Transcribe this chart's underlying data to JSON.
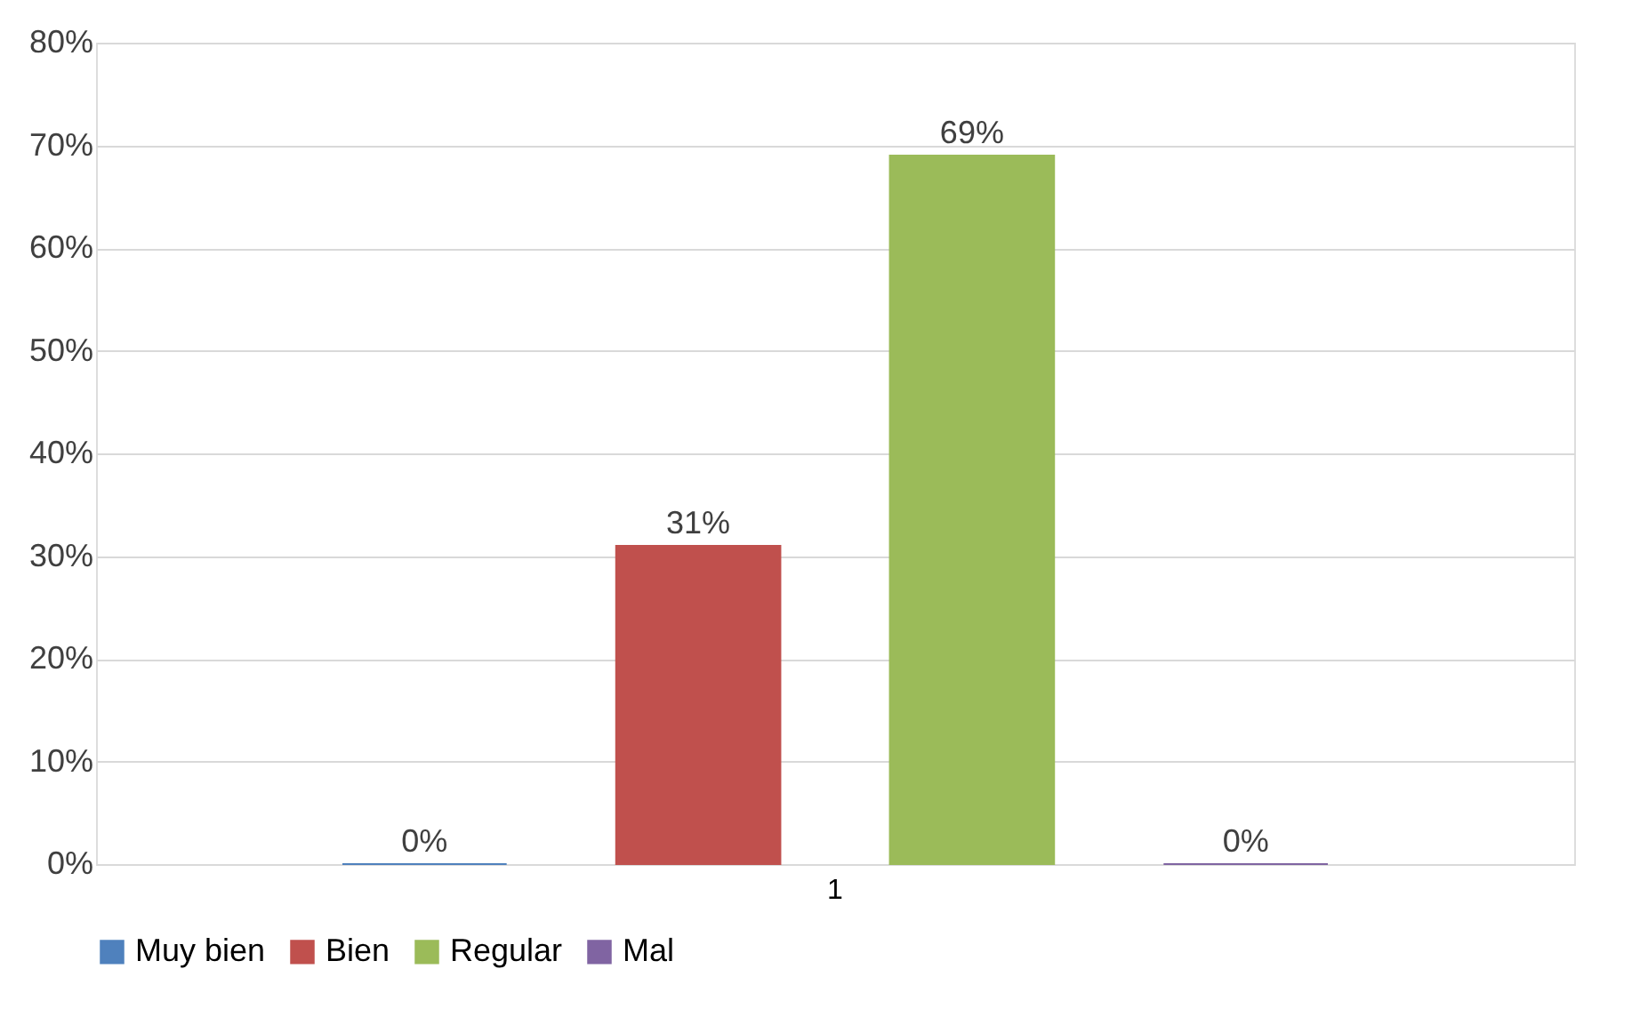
{
  "chart_data": {
    "type": "bar",
    "categories": [
      "1"
    ],
    "series": [
      {
        "name": "Muy bien",
        "color": "#4f81bd",
        "values": [
          0
        ],
        "value_labels": [
          "0%"
        ]
      },
      {
        "name": "Bien",
        "color": "#c0504d",
        "values": [
          31
        ],
        "value_labels": [
          "31%"
        ]
      },
      {
        "name": "Regular",
        "color": "#9bbb59",
        "values": [
          69
        ],
        "value_labels": [
          "69%"
        ]
      },
      {
        "name": "Mal",
        "color": "#8064a2",
        "values": [
          0
        ],
        "value_labels": [
          "0%"
        ]
      }
    ],
    "ylim": [
      0,
      80
    ],
    "yticks": [
      {
        "value": 0,
        "label": "0%"
      },
      {
        "value": 10,
        "label": "10%"
      },
      {
        "value": 20,
        "label": "20%"
      },
      {
        "value": 30,
        "label": "30%"
      },
      {
        "value": 40,
        "label": "40%"
      },
      {
        "value": 50,
        "label": "50%"
      },
      {
        "value": 60,
        "label": "60%"
      },
      {
        "value": 70,
        "label": "70%"
      },
      {
        "value": 80,
        "label": "80%"
      }
    ],
    "grid": "y",
    "legend": "bottom"
  }
}
